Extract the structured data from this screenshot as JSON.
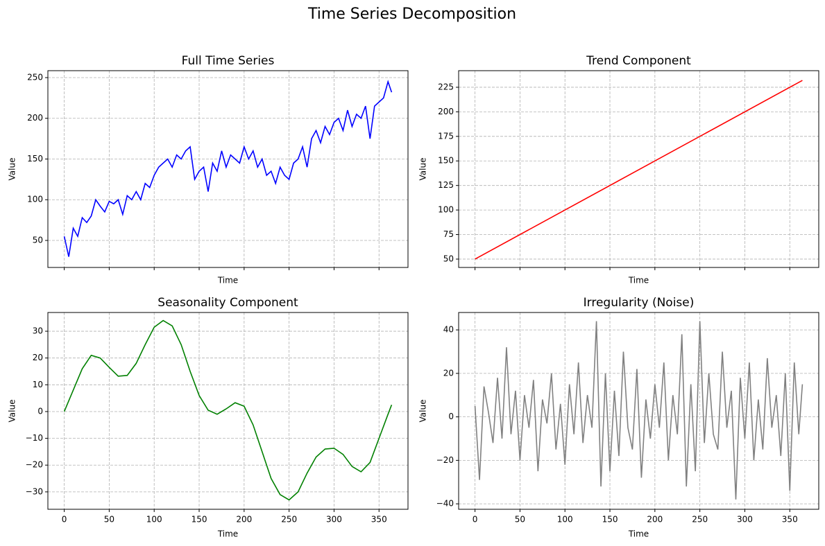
{
  "title": "Time Series Decomposition",
  "chart_data": [
    {
      "type": "line",
      "title": "Full Time Series",
      "xlabel": "Time",
      "ylabel": "Value",
      "color": "#0000ff",
      "x": [
        0,
        5,
        10,
        15,
        20,
        25,
        30,
        35,
        40,
        45,
        50,
        55,
        60,
        65,
        70,
        75,
        80,
        85,
        90,
        95,
        100,
        105,
        110,
        115,
        120,
        125,
        130,
        135,
        140,
        145,
        150,
        155,
        160,
        165,
        170,
        175,
        180,
        185,
        190,
        195,
        200,
        205,
        210,
        215,
        220,
        225,
        230,
        235,
        240,
        245,
        250,
        255,
        260,
        265,
        270,
        275,
        280,
        285,
        290,
        295,
        300,
        305,
        310,
        315,
        320,
        325,
        330,
        335,
        340,
        345,
        350,
        355,
        360,
        364
      ],
      "values": [
        55,
        30,
        65,
        55,
        78,
        72,
        80,
        100,
        92,
        85,
        98,
        95,
        100,
        82,
        105,
        100,
        110,
        100,
        120,
        115,
        130,
        140,
        145,
        150,
        140,
        155,
        150,
        160,
        165,
        125,
        135,
        140,
        110,
        145,
        135,
        160,
        140,
        155,
        150,
        145,
        165,
        150,
        160,
        140,
        150,
        130,
        135,
        120,
        140,
        130,
        125,
        145,
        150,
        165,
        140,
        175,
        185,
        170,
        190,
        180,
        195,
        200,
        185,
        210,
        190,
        205,
        200,
        215,
        175,
        215,
        220,
        225,
        245,
        232
      ],
      "xlim": [
        -18.2,
        382.2
      ],
      "xticks": [
        0,
        50,
        100,
        150,
        200,
        250,
        300,
        350
      ],
      "show_xtick_labels": false,
      "ylim": [
        16.8,
        258.5
      ],
      "yticks": [
        50,
        100,
        150,
        200,
        250
      ],
      "grid": true
    },
    {
      "type": "line",
      "title": "Trend Component",
      "xlabel": "Time",
      "ylabel": "Value",
      "color": "#ff0000",
      "x": [
        0,
        364
      ],
      "values": [
        50,
        232
      ],
      "xlim": [
        -18.2,
        382.2
      ],
      "xticks": [
        0,
        50,
        100,
        150,
        200,
        250,
        300,
        350
      ],
      "show_xtick_labels": false,
      "ylim": [
        41.5,
        241.9
      ],
      "yticks": [
        50,
        75,
        100,
        125,
        150,
        175,
        200,
        225
      ],
      "grid": true
    },
    {
      "type": "line",
      "title": "Seasonality Component",
      "xlabel": "Time",
      "ylabel": "Value",
      "color": "#008000",
      "x": [
        0,
        10,
        20,
        30,
        40,
        50,
        60,
        70,
        80,
        90,
        100,
        110,
        120,
        130,
        140,
        150,
        160,
        170,
        180,
        190,
        200,
        210,
        220,
        230,
        240,
        250,
        260,
        270,
        280,
        290,
        300,
        310,
        320,
        330,
        340,
        350,
        360,
        364
      ],
      "values": [
        0,
        8,
        16,
        21,
        20,
        16.5,
        13.2,
        13.5,
        18,
        25,
        31.5,
        34,
        32,
        25,
        15,
        6,
        0.5,
        -1,
        1,
        3.3,
        2,
        -5,
        -15,
        -25,
        -31,
        -33,
        -30,
        -23,
        -17,
        -14,
        -13.7,
        -16,
        -20.5,
        -22.5,
        -19,
        -10,
        -1,
        2.5
      ],
      "xlim": [
        -18.2,
        382.2
      ],
      "xticks": [
        0,
        50,
        100,
        150,
        200,
        250,
        300,
        350
      ],
      "show_xtick_labels": true,
      "ylim": [
        -36.5,
        37
      ],
      "yticks": [
        -30,
        -20,
        -10,
        0,
        10,
        20,
        30
      ],
      "yticklabels": [
        "−30",
        "−20",
        "−10",
        "0",
        "10",
        "20",
        "30"
      ],
      "grid": true
    },
    {
      "type": "line",
      "title": "Irregularity (Noise)",
      "xlabel": "Time",
      "ylabel": "Value",
      "color": "#808080",
      "x": [
        0,
        5,
        10,
        15,
        20,
        25,
        30,
        35,
        40,
        45,
        50,
        55,
        60,
        65,
        70,
        75,
        80,
        85,
        90,
        95,
        100,
        105,
        110,
        115,
        120,
        125,
        130,
        135,
        140,
        145,
        150,
        155,
        160,
        165,
        170,
        175,
        180,
        185,
        190,
        195,
        200,
        205,
        210,
        215,
        220,
        225,
        230,
        235,
        240,
        245,
        250,
        255,
        260,
        265,
        270,
        275,
        280,
        285,
        290,
        295,
        300,
        305,
        310,
        315,
        320,
        325,
        330,
        335,
        340,
        345,
        350,
        355,
        360,
        364
      ],
      "values": [
        5,
        -29,
        14,
        2,
        -12,
        18,
        -10,
        32,
        -8,
        12,
        -20,
        10,
        -5,
        17,
        -25,
        8,
        -3,
        20,
        -15,
        6,
        -22,
        15,
        -8,
        25,
        -12,
        10,
        -5,
        44,
        -32,
        20,
        -25,
        12,
        -18,
        30,
        -5,
        -15,
        22,
        -28,
        8,
        -10,
        15,
        -5,
        25,
        -20,
        10,
        -8,
        38,
        -32,
        15,
        -25,
        44,
        -12,
        20,
        -8,
        -15,
        30,
        -5,
        12,
        -38,
        18,
        -10,
        25,
        -20,
        8,
        -15,
        27,
        -5,
        10,
        -18,
        20,
        -34,
        25,
        -8,
        15
      ],
      "xlim": [
        -18.2,
        382.2
      ],
      "xticks": [
        0,
        50,
        100,
        150,
        200,
        250,
        300,
        350
      ],
      "show_xtick_labels": true,
      "ylim": [
        -42.5,
        48
      ],
      "yticks": [
        -40,
        -20,
        0,
        20,
        40
      ],
      "yticklabels": [
        "−40",
        "−20",
        "0",
        "20",
        "40"
      ],
      "grid": true
    }
  ]
}
